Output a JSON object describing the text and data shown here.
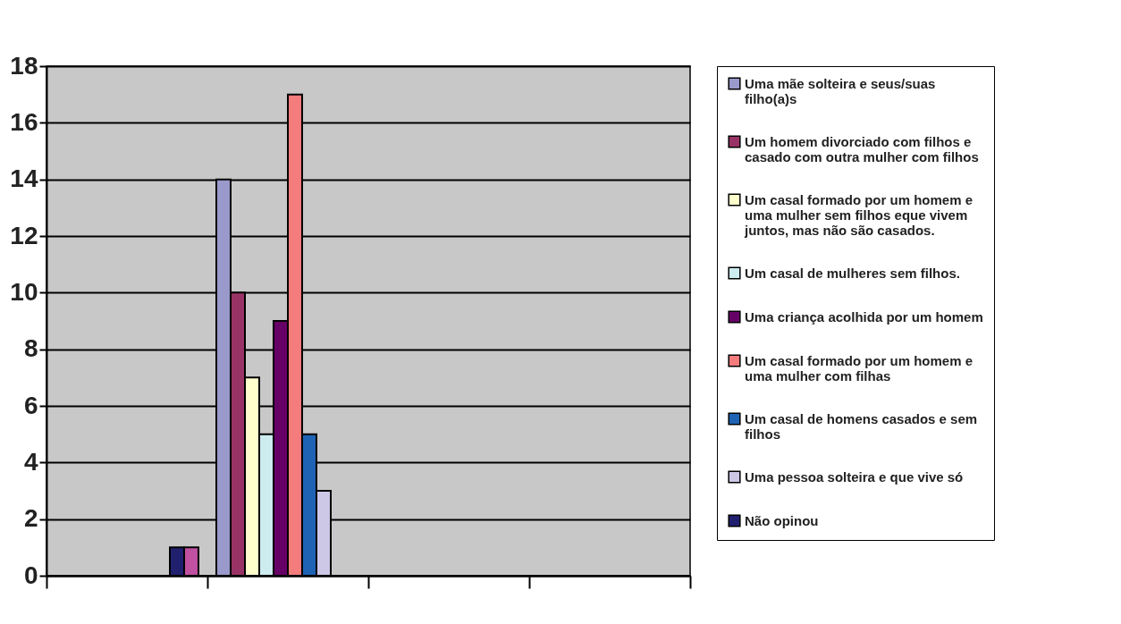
{
  "chart_data": {
    "type": "bar",
    "categories": [
      null,
      null,
      null,
      null
    ],
    "series": [
      {
        "name": "Uma mãe solteira e seus/suas filho(a)s",
        "color": "#9999cc",
        "values": [
          null,
          14,
          null,
          null
        ]
      },
      {
        "name": "Um homem divorciado com filhos e casado com outra mulher com filhos",
        "color": "#993366",
        "values": [
          null,
          10,
          null,
          null
        ]
      },
      {
        "name": "Um casal formado por um homem e uma mulher sem filhos eque vivem juntos, mas não são casados.",
        "color": "#ffffcc",
        "values": [
          null,
          7,
          null,
          null
        ]
      },
      {
        "name": "Um casal de mulheres sem filhos.",
        "color": "#ccecf0",
        "values": [
          null,
          5,
          null,
          null
        ]
      },
      {
        "name": "Uma criança acolhida por um homem",
        "color": "#660066",
        "values": [
          null,
          9,
          null,
          null
        ]
      },
      {
        "name": "Um casal formado por um homem e uma mulher com filhas",
        "color": "#f47c7c",
        "values": [
          null,
          17,
          null,
          null
        ]
      },
      {
        "name": "Um casal de homens casados e sem filhos",
        "color": "#1f64b4",
        "values": [
          null,
          5,
          null,
          null
        ]
      },
      {
        "name": "Uma pessoa solteira e que vive só",
        "color": "#ccc8e6",
        "values": [
          null,
          3,
          null,
          null
        ]
      },
      {
        "name": "Não opinou",
        "color": "#20206e",
        "values": [
          1,
          null,
          null,
          null
        ]
      },
      {
        "color": "#c050a0",
        "values": [
          1,
          null,
          null,
          null
        ]
      }
    ],
    "ylim": [
      0,
      18
    ],
    "yticks": [
      0,
      2,
      4,
      6,
      8,
      10,
      12,
      14,
      16,
      18
    ],
    "grid": "y",
    "legend": "right",
    "tick_labels": "y"
  }
}
